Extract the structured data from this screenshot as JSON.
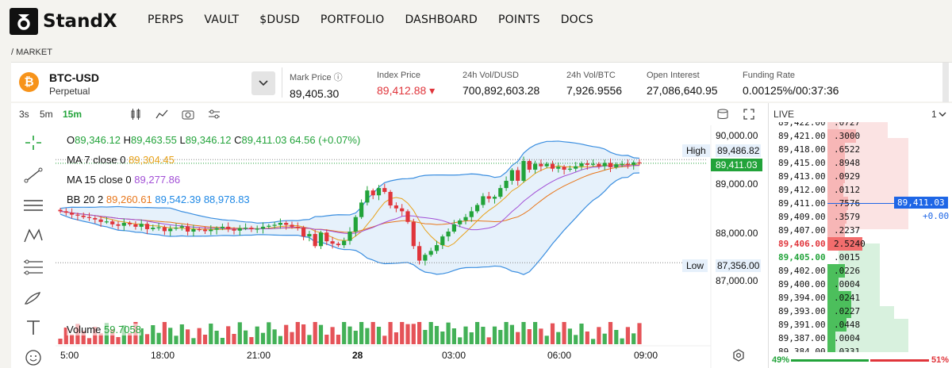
{
  "brand": {
    "name": "StandX"
  },
  "nav": [
    "PERPS",
    "VAULT",
    "$DUSD",
    "PORTFOLIO",
    "DASHBOARD",
    "POINTS",
    "DOCS"
  ],
  "breadcrumb": "/ MARKET",
  "market": {
    "symbol": "BTC-USD",
    "kind": "Perpetual",
    "stats": [
      {
        "label": "Mark Price ⓘ",
        "value": "89,405.30",
        "color": "#111111"
      },
      {
        "label": "Index Price",
        "value": "89,412.88 ▾",
        "color": "#e0353b"
      },
      {
        "label": "24h Vol/DUSD",
        "value": "700,892,603.28",
        "color": "#111111"
      },
      {
        "label": "24h Vol/BTC",
        "value": "7,926.9556",
        "color": "#111111"
      },
      {
        "label": "Open Interest",
        "value": "27,086,640.95",
        "color": "#111111"
      },
      {
        "label": "Funding Rate",
        "value": "0.00125%/00:37:36",
        "color": "#111111"
      }
    ]
  },
  "toolbar": {
    "intervals": [
      "3s",
      "5m",
      "15m"
    ],
    "active_interval": "15m"
  },
  "legend": {
    "ohlc": {
      "o_lbl": "O",
      "o": "89,346.12",
      "h_lbl": "H",
      "h": "89,463.55",
      "l_lbl": "L",
      "l": "89,346.12",
      "c_lbl": "C",
      "c": "89,411.03",
      "chg": "64.56 (+0.07%)"
    },
    "ma7": {
      "label": "MA 7 close 0",
      "value": "89,304.45"
    },
    "ma15": {
      "label": "MA 15 close 0",
      "value": "89,277.86"
    },
    "bb": {
      "label": "BB 20 2",
      "v1": "89,260.61",
      "v2": "89,542.39",
      "v3": "88,978.83"
    },
    "volume": {
      "label": "Volume",
      "value": "59.7058"
    }
  },
  "price_axis": {
    "ticks": [
      "90,000.00",
      "89,000.00",
      "88,000.00",
      "87,000.00"
    ],
    "high_label": "High",
    "high": "89,486.82",
    "low_label": "Low",
    "low": "87,356.00",
    "last": "89,411.03"
  },
  "time_axis": [
    "5:00",
    "18:00",
    "21:00",
    "28",
    "03:00",
    "06:00",
    "09:00"
  ],
  "orderbook": {
    "title": "LIVE",
    "depth_select": "1",
    "asks": [
      {
        "price": "89,421.00",
        "size": ".3000"
      },
      {
        "price": "89,418.00",
        "size": ".6522"
      },
      {
        "price": "89,415.00",
        "size": ".8948"
      },
      {
        "price": "89,413.00",
        "size": ".0929"
      },
      {
        "price": "89,412.00",
        "size": ".0112"
      },
      {
        "price": "89,411.00",
        "size": ".7576"
      },
      {
        "price": "89,409.00",
        "size": ".3579"
      },
      {
        "price": "89,407.00",
        "size": ".2237"
      },
      {
        "price": "89,406.00",
        "size": "2.5240"
      }
    ],
    "bids": [
      {
        "price": "89,405.00",
        "size": ".0015"
      },
      {
        "price": "89,402.00",
        "size": ".0226"
      },
      {
        "price": "89,400.00",
        "size": ".0004"
      },
      {
        "price": "89,394.00",
        "size": ".0241"
      },
      {
        "price": "89,393.00",
        "size": ".0227"
      },
      {
        "price": "89,391.00",
        "size": ".0448"
      },
      {
        "price": "89,387.00",
        "size": ".0004"
      }
    ],
    "last_price": "89,411.03",
    "last_change": "+0.00",
    "bid_pct": "49%",
    "ask_pct": "51%"
  },
  "colors": {
    "up": "#22a33a",
    "down": "#e0353b",
    "accent": "#1e88e5",
    "ma7": "#e8a21a",
    "ma15": "#a24fd6"
  }
}
